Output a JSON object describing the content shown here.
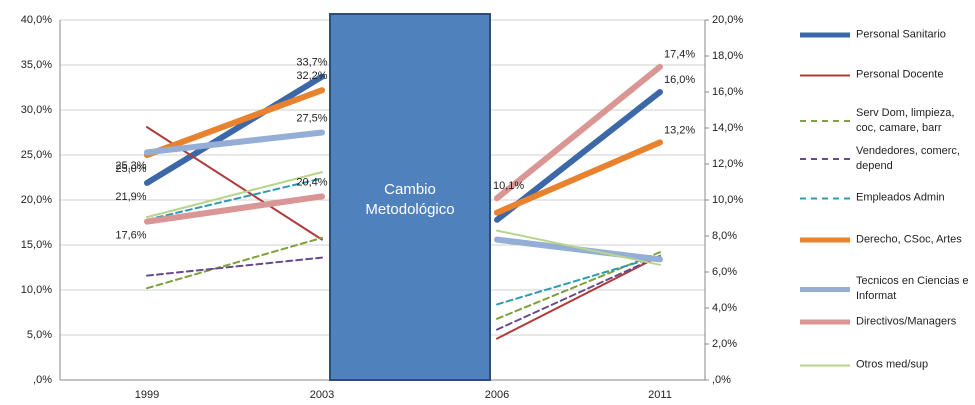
{
  "chart_data": {
    "type": "line",
    "annotation": "Cambio Metodológico",
    "categories": [
      "1999",
      "2003",
      "2006",
      "2011"
    ],
    "ylim": [
      0,
      40
    ],
    "yticks": [
      {
        "value": 0,
        "label": ",0%"
      },
      {
        "value": 5,
        "label": "5,0%"
      },
      {
        "value": 10,
        "label": "10,0%"
      },
      {
        "value": 15,
        "label": "15,0%"
      },
      {
        "value": 20,
        "label": "20,0%"
      },
      {
        "value": 25,
        "label": "25,0%"
      },
      {
        "value": 30,
        "label": "30,0%"
      },
      {
        "value": 35,
        "label": "35,0%"
      },
      {
        "value": 40,
        "label": "40,0%"
      }
    ],
    "y2lim": [
      0,
      20
    ],
    "y2ticks": [
      {
        "value": 0,
        "label": ",0%"
      },
      {
        "value": 2,
        "label": "2,0%"
      },
      {
        "value": 4,
        "label": "4,0%"
      },
      {
        "value": 6,
        "label": "6,0%"
      },
      {
        "value": 8,
        "label": "8,0%"
      },
      {
        "value": 10,
        "label": "10,0%"
      },
      {
        "value": 12,
        "label": "12,0%"
      },
      {
        "value": 14,
        "label": "14,0%"
      },
      {
        "value": 16,
        "label": "16,0%"
      },
      {
        "value": 18,
        "label": "18,0%"
      },
      {
        "value": 20,
        "label": "20,0%"
      }
    ],
    "grid": true,
    "series": [
      {
        "name": "Personal Sanitario",
        "color": "#3c68a8",
        "width": 6,
        "dashed": false,
        "values": [
          21.9,
          33.7,
          null,
          null
        ],
        "value_labels": [
          "21,9%",
          "33,7%",
          null,
          null
        ],
        "values_y2": [
          null,
          null,
          8.9,
          16.0
        ],
        "value_labels_y2": [
          null,
          null,
          null,
          "16,0%"
        ]
      },
      {
        "name": "Personal Docente",
        "color": "#b03c3a",
        "width": 2,
        "dashed": false,
        "values": [
          28.1,
          15.6,
          null,
          null
        ],
        "values_y2": [
          null,
          null,
          2.3,
          6.9
        ]
      },
      {
        "name": "Serv Dom, limpieza, coc, camare, barr",
        "color": "#7ea03e",
        "width": 2,
        "dashed": true,
        "values": [
          10.2,
          15.8,
          null,
          null
        ],
        "values_y2": [
          null,
          null,
          3.4,
          7.1
        ]
      },
      {
        "name": "Vendedores, comerc, depend",
        "color": "#6a4a8c",
        "width": 2,
        "dashed": true,
        "values": [
          11.6,
          13.6,
          null,
          null
        ],
        "values_y2": [
          null,
          null,
          2.8,
          6.9
        ]
      },
      {
        "name": "Empleados Admin",
        "color": "#2f9bb0",
        "width": 2,
        "dashed": true,
        "values": [
          17.8,
          22.4,
          null,
          null
        ],
        "values_y2": [
          null,
          null,
          4.2,
          6.9
        ]
      },
      {
        "name": "Derecho, CSoc, Artes",
        "color": "#e8822e",
        "width": 6,
        "dashed": false,
        "values": [
          25.0,
          32.2,
          null,
          null
        ],
        "value_labels": [
          "25,0%",
          "32,2%",
          null,
          null
        ],
        "values_y2": [
          null,
          null,
          9.3,
          13.2
        ],
        "value_labels_y2": [
          null,
          null,
          null,
          "13,2%"
        ]
      },
      {
        "name": "Tecnicos en Ciencias e Informat",
        "color": "#94aed6",
        "width": 6,
        "dashed": false,
        "values": [
          25.3,
          27.5,
          null,
          null
        ],
        "value_labels": [
          "25,3%",
          "27,5%",
          null,
          null
        ],
        "values_y2": [
          null,
          null,
          7.8,
          6.7
        ]
      },
      {
        "name": "Directivos/Managers",
        "color": "#da9695",
        "width": 6,
        "dashed": false,
        "values": [
          17.6,
          20.4,
          null,
          null
        ],
        "value_labels": [
          "17,6%",
          "20,4%",
          null,
          null
        ],
        "values_y2": [
          null,
          null,
          10.1,
          17.4
        ],
        "value_labels_y2": [
          null,
          null,
          "10,1%",
          "17,4%"
        ]
      },
      {
        "name": "Otros med/sup",
        "color": "#b8d48e",
        "width": 2,
        "dashed": false,
        "values": [
          18.1,
          23.1,
          null,
          null
        ],
        "values_y2": [
          null,
          null,
          8.3,
          6.4
        ]
      }
    ]
  }
}
